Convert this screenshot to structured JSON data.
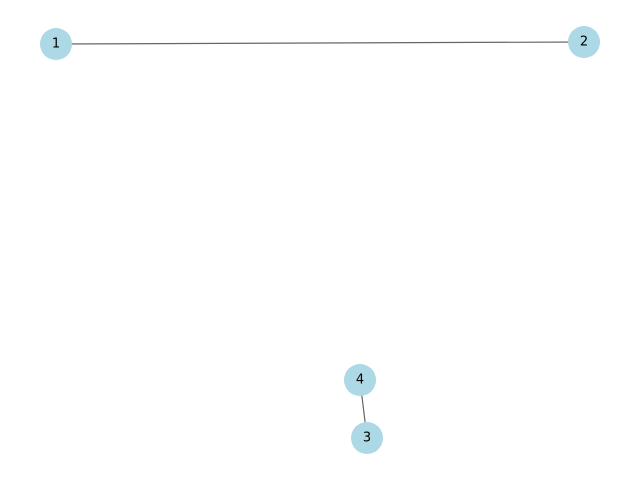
{
  "graph": {
    "nodes": [
      {
        "id": "1",
        "label": "1"
      },
      {
        "id": "2",
        "label": "2"
      },
      {
        "id": "3",
        "label": "3"
      },
      {
        "id": "4",
        "label": "4"
      }
    ],
    "edges": [
      {
        "source": "1",
        "target": "2"
      },
      {
        "source": "4",
        "target": "3"
      }
    ],
    "colors": {
      "node_fill": "#add8e6",
      "edge": "#666666",
      "label": "#000000",
      "background": "#ffffff"
    }
  }
}
